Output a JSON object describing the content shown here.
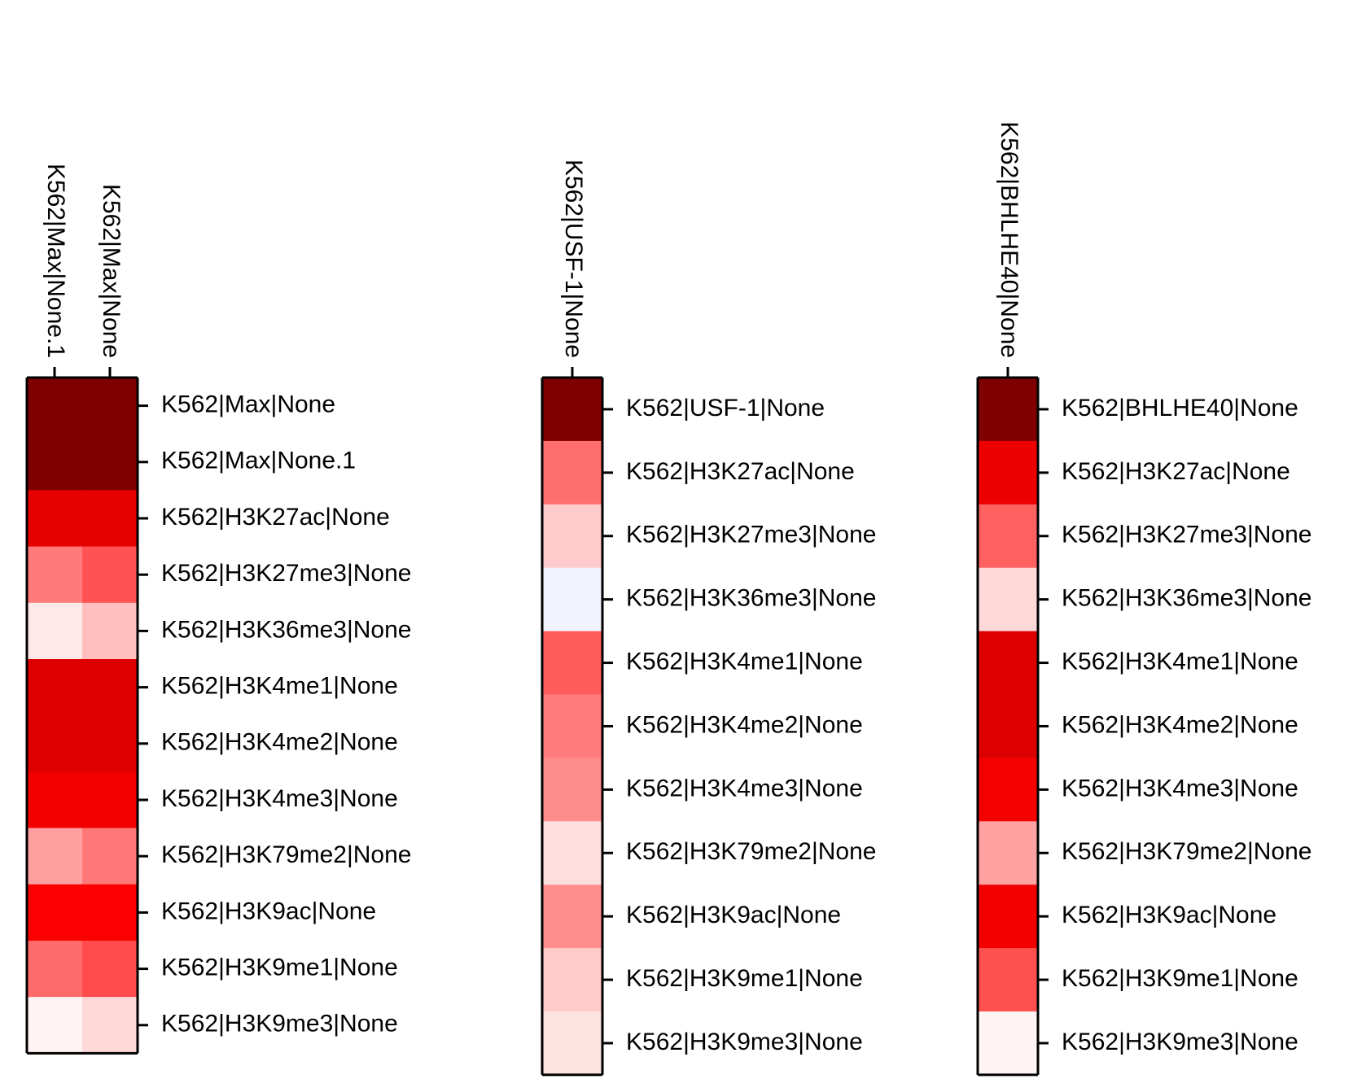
{
  "chart_data": [
    {
      "type": "heatmap",
      "title": "",
      "columns": [
        "K562|Max|None.1",
        "K562|Max|None"
      ],
      "rows": [
        "K562|Max|None",
        "K562|Max|None.1",
        "K562|H3K27ac|None",
        "K562|H3K27me3|None",
        "K562|H3K36me3|None",
        "K562|H3K4me1|None",
        "K562|H3K4me2|None",
        "K562|H3K4me3|None",
        "K562|H3K79me2|None",
        "K562|H3K9ac|None",
        "K562|H3K9me1|None",
        "K562|H3K9me3|None"
      ],
      "values": [
        [
          1.0,
          1.0
        ],
        [
          1.0,
          1.0
        ],
        [
          0.72,
          0.72
        ],
        [
          0.42,
          0.55
        ],
        [
          0.06,
          0.2
        ],
        [
          0.7,
          0.7
        ],
        [
          0.7,
          0.7
        ],
        [
          0.74,
          0.74
        ],
        [
          0.3,
          0.42
        ],
        [
          0.76,
          0.76
        ],
        [
          0.45,
          0.58
        ],
        [
          0.03,
          0.12
        ]
      ],
      "cell_colors": [
        [
          "#7f0000",
          "#7f0000"
        ],
        [
          "#7f0000",
          "#7f0000"
        ],
        [
          "#e60000",
          "#e60000"
        ],
        [
          "#ff7a7a",
          "#ff5252"
        ],
        [
          "#ffe8e8",
          "#ffbfbf"
        ],
        [
          "#dd0000",
          "#dd0000"
        ],
        [
          "#dd0000",
          "#dd0000"
        ],
        [
          "#f20000",
          "#f20000"
        ],
        [
          "#ffa0a0",
          "#ff7878"
        ],
        [
          "#fa0000",
          "#fa0000"
        ],
        [
          "#ff6a6a",
          "#ff4b4b"
        ],
        [
          "#fff3f3",
          "#ffd8d8"
        ]
      ]
    },
    {
      "type": "heatmap",
      "title": "",
      "columns": [
        "K562|USF-1|None"
      ],
      "rows": [
        "K562|USF-1|None",
        "K562|H3K27ac|None",
        "K562|H3K27me3|None",
        "K562|H3K36me3|None",
        "K562|H3K4me1|None",
        "K562|H3K4me2|None",
        "K562|H3K4me3|None",
        "K562|H3K79me2|None",
        "K562|H3K9ac|None",
        "K562|H3K9me1|None",
        "K562|H3K9me3|None"
      ],
      "values": [
        [
          1.0
        ],
        [
          0.45
        ],
        [
          0.15
        ],
        [
          -0.05
        ],
        [
          0.5
        ],
        [
          0.42
        ],
        [
          0.35
        ],
        [
          0.08
        ],
        [
          0.36
        ],
        [
          0.14
        ],
        [
          0.08
        ]
      ],
      "cell_colors": [
        [
          "#7f0000"
        ],
        [
          "#ff6e6e"
        ],
        [
          "#ffcaca"
        ],
        [
          "#f2f3fd"
        ],
        [
          "#ff5c5c"
        ],
        [
          "#ff7c7c"
        ],
        [
          "#ff8c8c"
        ],
        [
          "#ffdede"
        ],
        [
          "#ff8e8e"
        ],
        [
          "#ffcaca"
        ],
        [
          "#ffe2e2"
        ]
      ]
    },
    {
      "type": "heatmap",
      "title": "",
      "columns": [
        "K562|BHLHE40|None"
      ],
      "rows": [
        "K562|BHLHE40|None",
        "K562|H3K27ac|None",
        "K562|H3K27me3|None",
        "K562|H3K36me3|None",
        "K562|H3K4me1|None",
        "K562|H3K4me2|None",
        "K562|H3K4me3|None",
        "K562|H3K79me2|None",
        "K562|H3K9ac|None",
        "K562|H3K9me1|None",
        "K562|H3K9me3|None"
      ],
      "values": [
        [
          1.0
        ],
        [
          0.74
        ],
        [
          0.48
        ],
        [
          0.12
        ],
        [
          0.7
        ],
        [
          0.7
        ],
        [
          0.74
        ],
        [
          0.32
        ],
        [
          0.74
        ],
        [
          0.5
        ],
        [
          0.03
        ]
      ],
      "cell_colors": [
        [
          "#7f0000"
        ],
        [
          "#ef0000"
        ],
        [
          "#ff6060"
        ],
        [
          "#ffd8d8"
        ],
        [
          "#dd0000"
        ],
        [
          "#dd0000"
        ],
        [
          "#f50000"
        ],
        [
          "#ffa2a2"
        ],
        [
          "#f20000"
        ],
        [
          "#ff5050"
        ],
        [
          "#fff3f3"
        ]
      ]
    }
  ]
}
